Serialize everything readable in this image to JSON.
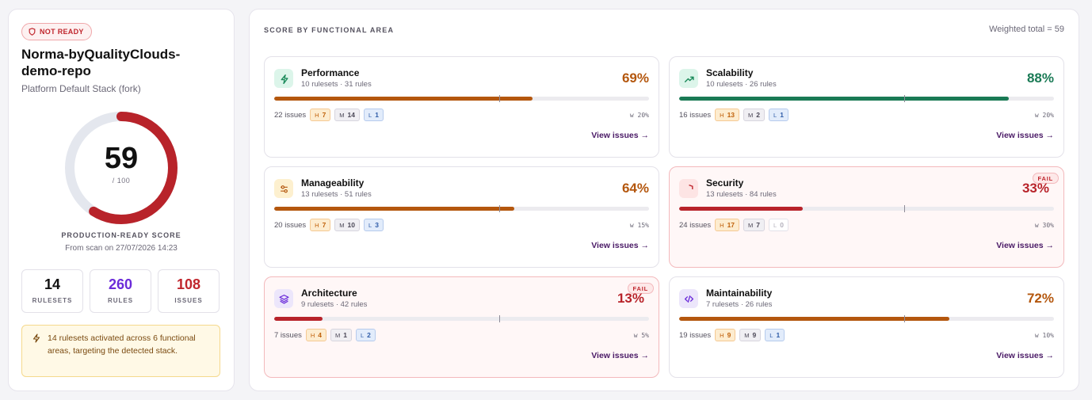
{
  "status_badge": "NOT READY",
  "repo": {
    "name": "Norma-byQualityClouds-demo-repo",
    "stack": "Platform Default Stack (fork)"
  },
  "score": {
    "value": "59",
    "denominator": "/ 100",
    "label": "PRODUCTION-READY SCORE",
    "scan": "From scan on 27/07/2026 14:23",
    "fraction": 0.59
  },
  "stats": [
    {
      "value": "14",
      "label": "RULESETS",
      "color": "#111111"
    },
    {
      "value": "260",
      "label": "RULES",
      "color": "#6b2bd9"
    },
    {
      "value": "108",
      "label": "ISSUES",
      "color": "#c0262d"
    }
  ],
  "info": "14 rulesets activated across 6 functional areas, targeting the detected stack.",
  "section": {
    "title": "SCORE BY FUNCTIONAL AREA",
    "weighted_total": "Weighted total = 59"
  },
  "fail_label": "FAIL",
  "view_label": "View issues →",
  "areas": [
    {
      "name": "Performance",
      "sub": "10 rulesets · 31 rules",
      "pct": "69%",
      "fraction": 0.69,
      "threshold": 0.6,
      "fail": false,
      "color": "#b4570e",
      "icon": "lightning-icon",
      "icon_bg": "#dcf5ea",
      "icon_fg": "#1b8a5a",
      "issues": "22 issues",
      "h": "7",
      "m": "14",
      "l": "1",
      "weight": "w 20%"
    },
    {
      "name": "Scalability",
      "sub": "10 rulesets · 26 rules",
      "pct": "88%",
      "fraction": 0.88,
      "threshold": 0.6,
      "fail": false,
      "color": "#1a7a55",
      "icon": "trend-up-icon",
      "icon_bg": "#dcf5ea",
      "icon_fg": "#1b8a5a",
      "issues": "16 issues",
      "h": "13",
      "m": "2",
      "l": "1",
      "weight": "w 20%"
    },
    {
      "name": "Manageability",
      "sub": "13 rulesets · 51 rules",
      "pct": "64%",
      "fraction": 0.64,
      "threshold": 0.6,
      "fail": false,
      "color": "#b4570e",
      "icon": "sliders-icon",
      "icon_bg": "#fdf0cf",
      "icon_fg": "#b4570e",
      "issues": "20 issues",
      "h": "7",
      "m": "10",
      "l": "3",
      "weight": "w 15%"
    },
    {
      "name": "Security",
      "sub": "13 rulesets · 84 rules",
      "pct": "33%",
      "fraction": 0.33,
      "threshold": 0.6,
      "fail": true,
      "color": "#b8232a",
      "icon": "shield-icon",
      "icon_bg": "#fde4e4",
      "icon_fg": "#c0262d",
      "issues": "24 issues",
      "h": "17",
      "m": "7",
      "l": "0",
      "weight": "w 30%"
    },
    {
      "name": "Architecture",
      "sub": "9 rulesets · 42 rules",
      "pct": "13%",
      "fraction": 0.13,
      "threshold": 0.6,
      "fail": true,
      "color": "#b8232a",
      "icon": "layers-icon",
      "icon_bg": "#ece6fb",
      "icon_fg": "#6b2bd9",
      "issues": "7 issues",
      "h": "4",
      "m": "1",
      "l": "2",
      "weight": "w 5%"
    },
    {
      "name": "Maintainability",
      "sub": "7 rulesets · 26 rules",
      "pct": "72%",
      "fraction": 0.72,
      "threshold": 0.6,
      "fail": false,
      "color": "#b4570e",
      "icon": "code-icon",
      "icon_bg": "#ece6fb",
      "icon_fg": "#6b2bd9",
      "issues": "19 issues",
      "h": "9",
      "m": "9",
      "l": "1",
      "weight": "w 10%"
    }
  ]
}
